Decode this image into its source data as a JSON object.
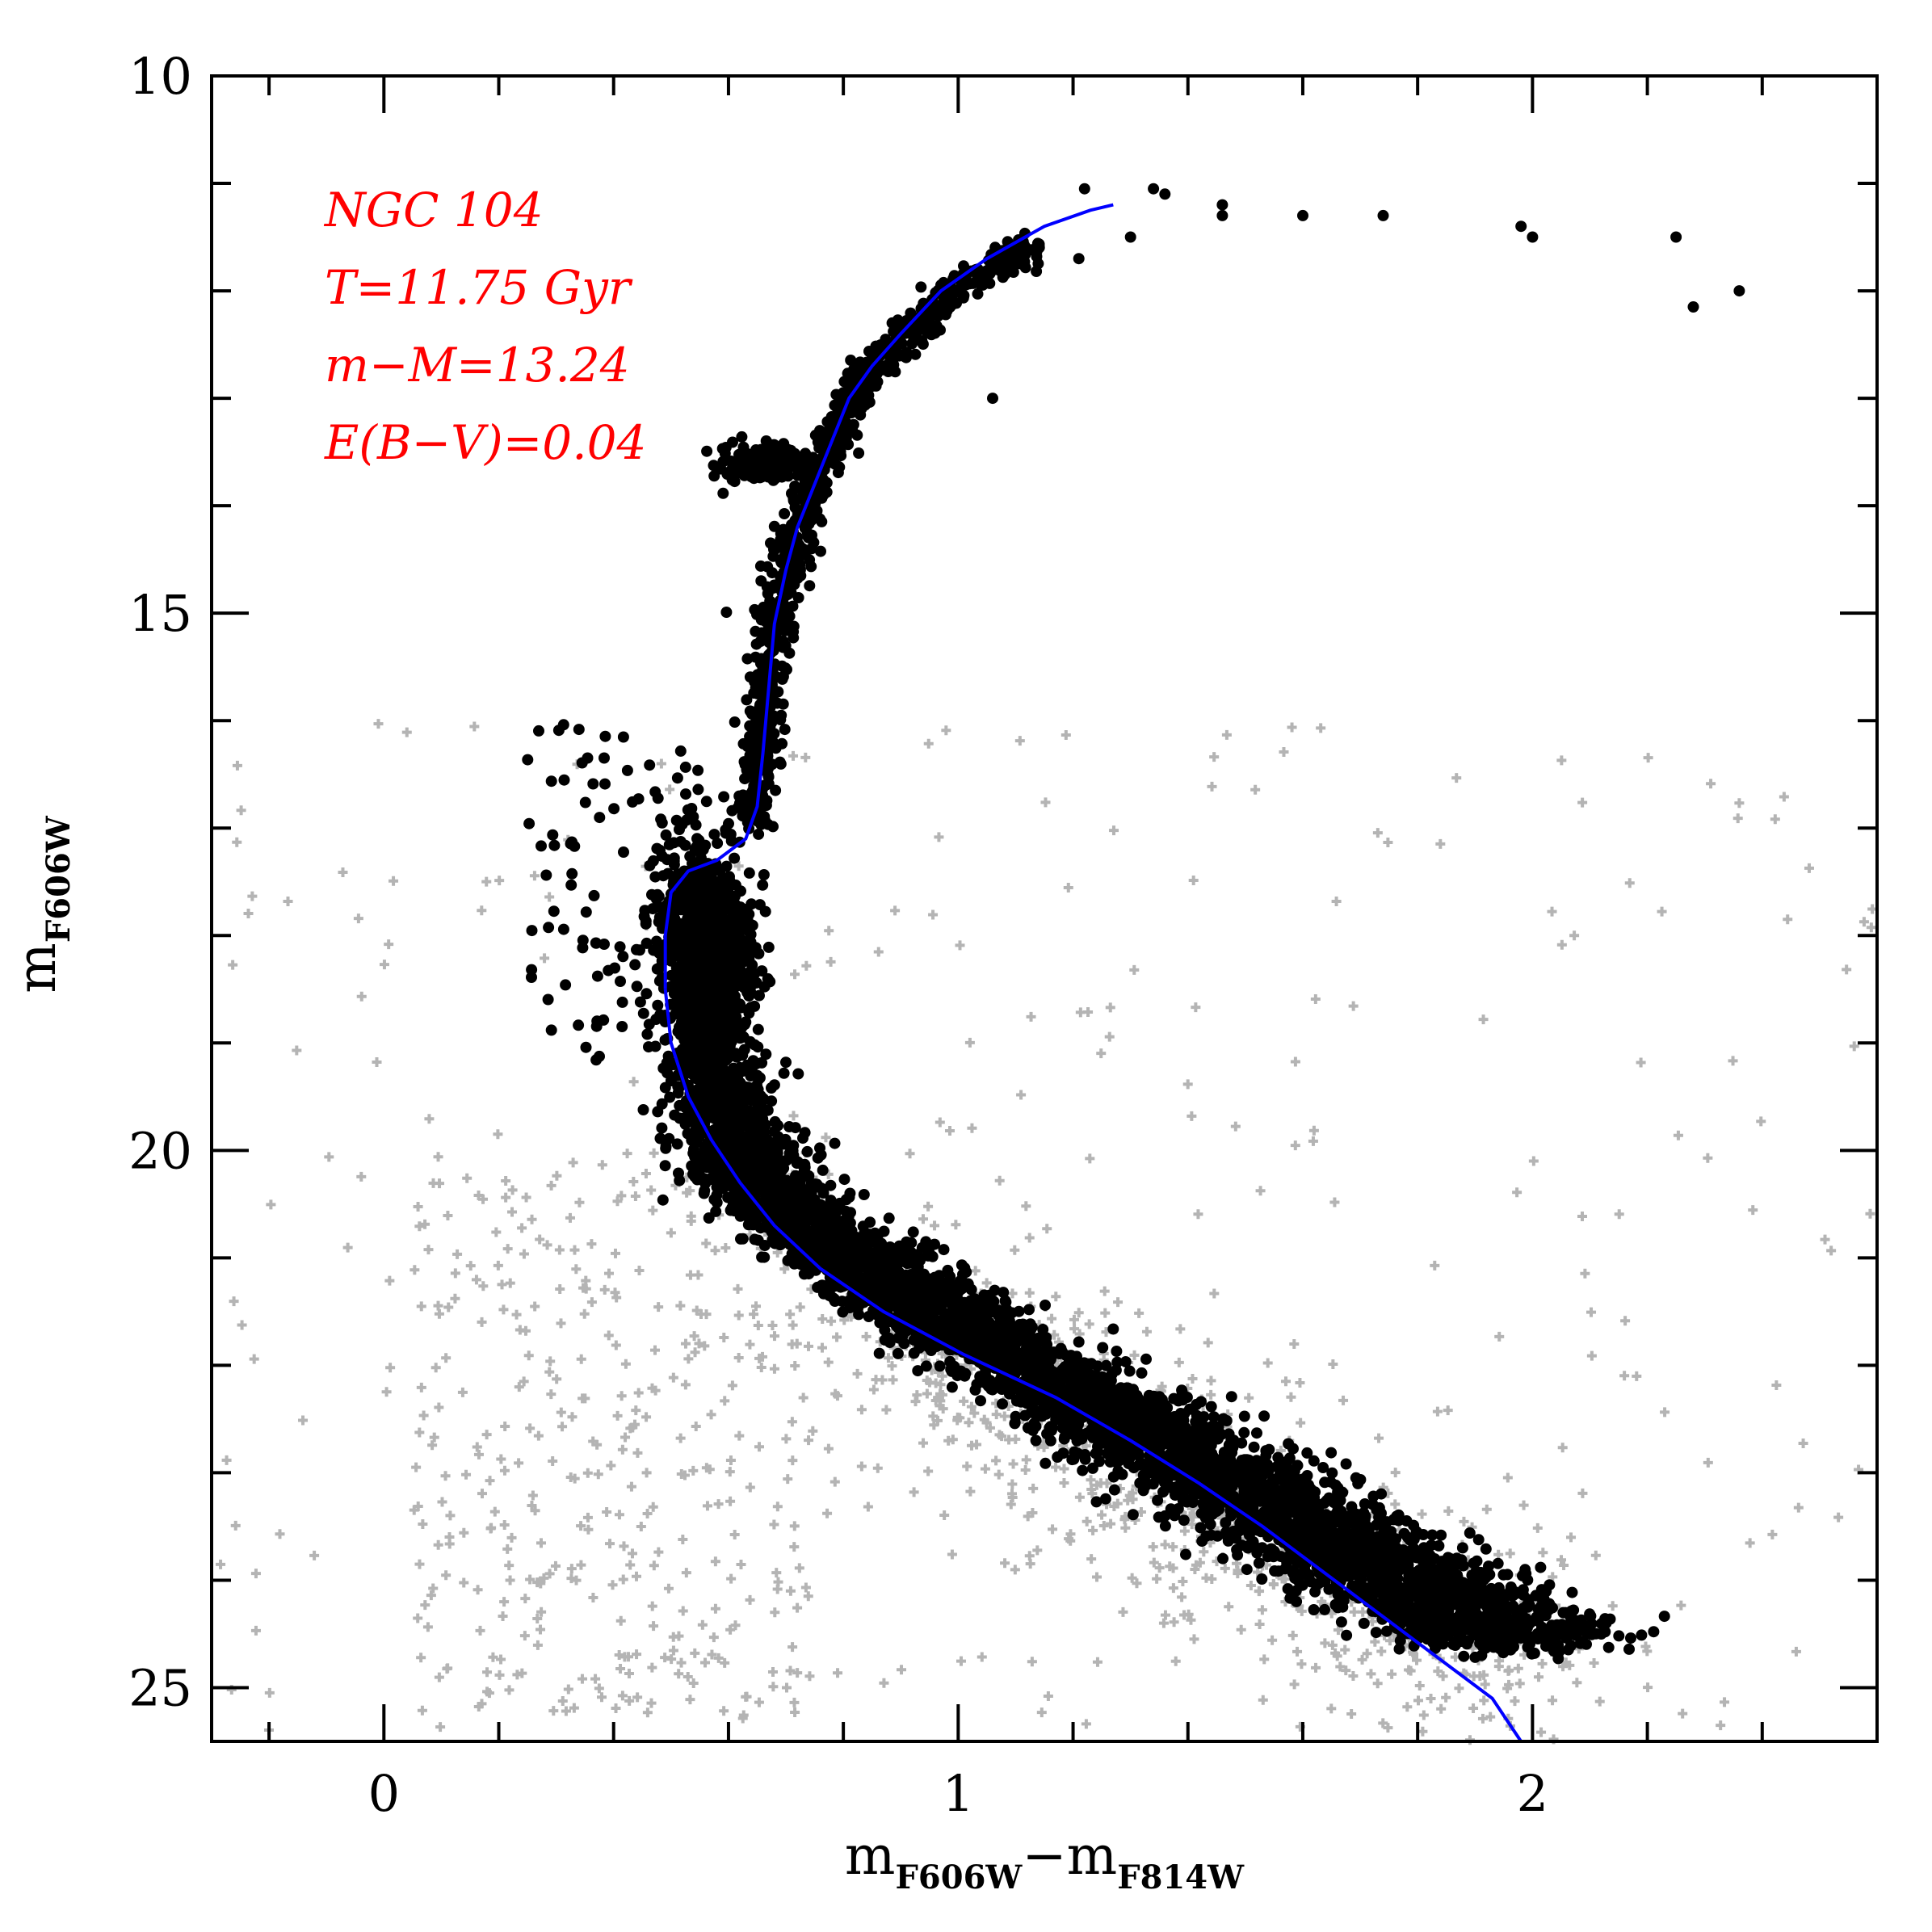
{
  "chart_data": {
    "type": "scatter",
    "title": "",
    "xlabel": {
      "main": "m",
      "sub1": "F606W",
      "minus": "−m",
      "sub2": "F814W"
    },
    "ylabel": {
      "main": "m",
      "sub": "F606W"
    },
    "xlim": [
      -0.3,
      2.6
    ],
    "ylim": [
      25.5,
      10
    ],
    "x_ticks": [
      0,
      1,
      2
    ],
    "x_tick_labels": [
      "0",
      "1",
      "2"
    ],
    "y_ticks": [
      10,
      15,
      20,
      25
    ],
    "y_tick_labels": [
      "10",
      "15",
      "20",
      "25"
    ],
    "x_minor_step": 0.2,
    "y_minor_step": 1,
    "grid": false,
    "legend": "none",
    "colors": {
      "members": "#000000",
      "field": "#b4b4b4",
      "isochrone": "#0000ff",
      "annotation": "#ff0000"
    },
    "annotations": [
      {
        "text": "NGC 104"
      },
      {
        "text": "T=11.75 Gyr"
      },
      {
        "text": "m−M=13.24"
      },
      {
        "text": "E(B−V)=0.04"
      }
    ],
    "isochrone": {
      "x": [
        0.49,
        0.49,
        0.5,
        0.53,
        0.58,
        0.63,
        0.65,
        0.66,
        0.67,
        0.68,
        0.7,
        0.72,
        0.75,
        0.78,
        0.81,
        0.85,
        0.9,
        0.97,
        1.05,
        1.15,
        1.23,
        1.27
      ],
      "y": [
        18.5,
        18.0,
        17.6,
        17.4,
        17.3,
        17.1,
        16.8,
        16.3,
        15.7,
        15.1,
        14.6,
        14.2,
        13.8,
        13.4,
        13.0,
        12.7,
        12.4,
        12.0,
        11.7,
        11.4,
        11.25,
        11.2
      ],
      "x2": [
        0.49,
        0.5,
        0.53,
        0.57,
        0.62,
        0.68,
        0.76,
        0.87,
        1.01,
        1.17,
        1.3,
        1.42,
        1.53,
        1.63,
        1.73,
        1.83,
        1.93,
        1.98
      ],
      "y2": [
        18.5,
        19.0,
        19.5,
        19.9,
        20.3,
        20.7,
        21.1,
        21.5,
        21.9,
        22.3,
        22.7,
        23.1,
        23.5,
        23.9,
        24.3,
        24.7,
        25.1,
        25.5
      ]
    },
    "series": [
      {
        "role": "members",
        "ridge_x": [
          0.58,
          0.58,
          0.57,
          0.57,
          0.58,
          0.6,
          0.63,
          0.68,
          0.74,
          0.82,
          0.9,
          0.99,
          1.08,
          1.18,
          1.28,
          1.38,
          1.48,
          1.58,
          1.68,
          1.78,
          1.88,
          1.98
        ],
        "ridge_y": [
          17.8,
          18.2,
          18.6,
          19.0,
          19.4,
          19.8,
          20.1,
          20.4,
          20.7,
          21.0,
          21.3,
          21.6,
          21.9,
          22.2,
          22.5,
          22.8,
          23.1,
          23.4,
          23.7,
          24.0,
          24.3,
          24.6
        ],
        "rgb_x": [
          0.64,
          0.65,
          0.66,
          0.67,
          0.68,
          0.7,
          0.72,
          0.75,
          0.78,
          0.82,
          0.86,
          0.91,
          0.97,
          1.05,
          1.14
        ],
        "rgb_y": [
          17.0,
          16.5,
          16.0,
          15.5,
          15.0,
          14.6,
          14.2,
          13.8,
          13.4,
          13.0,
          12.7,
          12.4,
          12.1,
          11.8,
          11.6
        ],
        "red_clump": {
          "x": 0.66,
          "y": 13.6,
          "sx": 0.035,
          "sy": 0.08,
          "n": 220
        },
        "bright": [
          {
            "x": 1.22,
            "y": 11.05
          },
          {
            "x": 1.34,
            "y": 11.05
          },
          {
            "x": 1.36,
            "y": 11.1
          },
          {
            "x": 1.46,
            "y": 11.2
          },
          {
            "x": 1.46,
            "y": 11.3
          },
          {
            "x": 1.6,
            "y": 11.3
          },
          {
            "x": 1.74,
            "y": 11.3
          },
          {
            "x": 1.98,
            "y": 11.4
          },
          {
            "x": 2.0,
            "y": 11.5
          },
          {
            "x": 2.25,
            "y": 11.5
          },
          {
            "x": 2.28,
            "y": 12.15
          },
          {
            "x": 2.36,
            "y": 12.0
          },
          {
            "x": 1.3,
            "y": 11.5
          },
          {
            "x": 1.21,
            "y": 11.7
          },
          {
            "x": 1.06,
            "y": 13.0
          }
        ]
      },
      {
        "role": "field",
        "n": 1400
      }
    ]
  }
}
